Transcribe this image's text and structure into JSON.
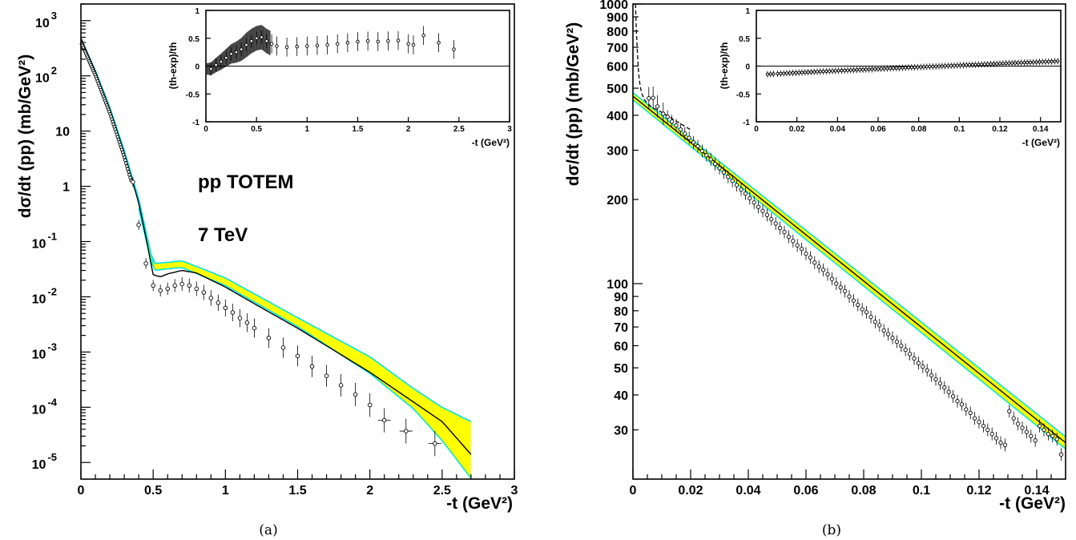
{
  "chart_data": [
    {
      "id": "a",
      "type": "scatter",
      "caption": "(a)",
      "annotations": [
        "pp  TOTEM",
        "7 TeV"
      ],
      "xlabel": "-t (GeV²)",
      "ylabel": "dσ/dt (pp) (mb/GeV²)",
      "xlim": [
        0,
        3
      ],
      "ylim": [
        5e-06,
        2000
      ],
      "yscale": "log",
      "xticks": [
        0,
        0.5,
        1,
        1.5,
        2,
        2.5,
        3
      ],
      "xtick_labels": [
        "0",
        "0.5",
        "1",
        "1.5",
        "2",
        "2.5",
        "3"
      ],
      "ytick_labels": [
        {
          "value": 1000,
          "label": "10 3"
        },
        {
          "value": 100,
          "label": "10 2"
        },
        {
          "value": 10,
          "label": "10"
        },
        {
          "value": 1,
          "label": "1"
        },
        {
          "value": 0.1,
          "label": "10 -1"
        },
        {
          "value": 0.01,
          "label": "10 -2"
        },
        {
          "value": 0.001,
          "label": "10 -3"
        },
        {
          "value": 0.0001,
          "label": "10 -4"
        },
        {
          "value": 1e-05,
          "label": "10 -5"
        }
      ],
      "band_color": "#ffff00",
      "band_edge_color": "#00e5e5",
      "model_curve": {
        "x": [
          0,
          0.1,
          0.2,
          0.3,
          0.4,
          0.45,
          0.5,
          0.55,
          0.6,
          0.7,
          0.8,
          1.0,
          1.2,
          1.5,
          2.0,
          2.5,
          2.7
        ],
        "y": [
          480,
          120,
          25,
          4,
          0.5,
          0.12,
          0.025,
          0.023,
          0.026,
          0.03,
          0.027,
          0.015,
          0.0075,
          0.0027,
          0.00043,
          5.5e-05,
          1.4e-05
        ]
      },
      "band_upper": {
        "x": [
          0.4,
          0.5,
          0.6,
          0.7,
          1.0,
          1.5,
          2.0,
          2.3,
          2.5,
          2.7
        ],
        "y": [
          0.6,
          0.04,
          0.042,
          0.045,
          0.022,
          0.0042,
          0.00082,
          0.00022,
          0.0001,
          5.5e-05
        ]
      },
      "band_lower": {
        "x": [
          0.4,
          0.5,
          0.6,
          0.7,
          1.0,
          1.5,
          2.0,
          2.3,
          2.5,
          2.7
        ],
        "y": [
          0.4,
          0.03,
          0.032,
          0.034,
          0.016,
          0.0029,
          0.00041,
          9.5e-05,
          2.5e-05,
          5.2e-06
        ]
      },
      "data_points": {
        "x": [
          0.36,
          0.4,
          0.45,
          0.5,
          0.55,
          0.6,
          0.65,
          0.7,
          0.75,
          0.8,
          0.85,
          0.9,
          0.95,
          1.0,
          1.05,
          1.1,
          1.15,
          1.2,
          1.3,
          1.4,
          1.5,
          1.6,
          1.7,
          1.8,
          1.9,
          2.0,
          2.1,
          2.25,
          2.45
        ],
        "y": [
          1.2,
          0.2,
          0.04,
          0.016,
          0.013,
          0.014,
          0.016,
          0.017,
          0.016,
          0.014,
          0.012,
          0.0095,
          0.0078,
          0.0063,
          0.0052,
          0.0041,
          0.0034,
          0.0027,
          0.0018,
          0.0012,
          0.00085,
          0.00055,
          0.00037,
          0.00025,
          0.00017,
          0.00011,
          5.8e-05,
          3.7e-05,
          2.2e-05
        ]
      },
      "inset": {
        "xlabel": "-t (GeV²)",
        "ylabel": "(th-exp)/th",
        "xlim": [
          0,
          3
        ],
        "ylim": [
          -1,
          1
        ],
        "xtick_labels": [
          "0",
          "0.5",
          "1",
          "1.5",
          "2",
          "2.5",
          "3"
        ],
        "ytick_labels": [
          "1",
          "0.5",
          "0",
          "-0.5",
          "-1"
        ],
        "residuals": {
          "x": [
            0.05,
            0.1,
            0.15,
            0.2,
            0.25,
            0.3,
            0.35,
            0.4,
            0.45,
            0.5,
            0.55,
            0.6,
            0.65,
            0.7,
            0.8,
            0.9,
            1.0,
            1.1,
            1.2,
            1.3,
            1.4,
            1.5,
            1.6,
            1.7,
            1.8,
            1.9,
            2.0,
            2.05,
            2.15,
            2.3,
            2.45
          ],
          "y": [
            -0.05,
            0.02,
            0.08,
            0.15,
            0.22,
            0.25,
            0.3,
            0.38,
            0.45,
            0.5,
            0.52,
            0.45,
            0.4,
            0.36,
            0.34,
            0.35,
            0.36,
            0.37,
            0.38,
            0.4,
            0.42,
            0.44,
            0.45,
            0.44,
            0.45,
            0.46,
            0.4,
            0.38,
            0.55,
            0.42,
            0.3
          ]
        }
      }
    },
    {
      "id": "b",
      "type": "scatter",
      "caption": "(b)",
      "xlabel": "-t (GeV²)",
      "ylabel": "dσ/dt (pp) (mb/GeV²)",
      "xlim": [
        0,
        0.15
      ],
      "ylim": [
        20,
        1000
      ],
      "yscale": "log",
      "xticks": [
        0,
        0.02,
        0.04,
        0.06,
        0.08,
        0.1,
        0.12,
        0.14
      ],
      "xtick_labels": [
        "0",
        "0.02",
        "0.04",
        "0.06",
        "0.08",
        "0.1",
        "0.12",
        "0.14"
      ],
      "ytick_labels": [
        {
          "value": 1000,
          "label": "1000"
        },
        {
          "value": 900,
          "label": "900"
        },
        {
          "value": 800,
          "label": "800"
        },
        {
          "value": 700,
          "label": "700"
        },
        {
          "value": 600,
          "label": "600"
        },
        {
          "value": 500,
          "label": "500"
        },
        {
          "value": 400,
          "label": "400"
        },
        {
          "value": 300,
          "label": "300"
        },
        {
          "value": 200,
          "label": "200"
        },
        {
          "value": 100,
          "label": "100"
        },
        {
          "value": 90,
          "label": "90"
        },
        {
          "value": 80,
          "label": "80"
        },
        {
          "value": 70,
          "label": "70"
        },
        {
          "value": 60,
          "label": "60"
        },
        {
          "value": 50,
          "label": "50"
        },
        {
          "value": 40,
          "label": "40"
        },
        {
          "value": 30,
          "label": "30"
        }
      ],
      "model_curve": {
        "x": [
          0,
          0.15
        ],
        "y": [
          468,
          27
        ]
      },
      "band_color": "#ffff00",
      "band_edge_color": "#00e5e5",
      "dashed_curve": {
        "x": [
          0.0009,
          0.0012,
          0.0016,
          0.002,
          0.0025,
          0.003,
          0.004,
          0.005,
          0.007,
          0.01,
          0.02
        ],
        "y": [
          1000,
          800,
          650,
          560,
          510,
          480,
          455,
          440,
          425,
          410,
          355
        ]
      },
      "data_points": {
        "x": [
          0.0055,
          0.007,
          0.0085,
          0.0105,
          0.012,
          0.0135,
          0.015,
          0.0165,
          0.018,
          0.0195,
          0.021,
          0.0225,
          0.024,
          0.0255,
          0.027,
          0.0285,
          0.03,
          0.0315,
          0.033,
          0.0345,
          0.036,
          0.0375,
          0.039,
          0.0405,
          0.042,
          0.0435,
          0.045,
          0.0465,
          0.048,
          0.0495,
          0.051,
          0.0525,
          0.054,
          0.0555,
          0.057,
          0.0585,
          0.06,
          0.0615,
          0.063,
          0.0645,
          0.066,
          0.0675,
          0.069,
          0.0705,
          0.072,
          0.0735,
          0.075,
          0.0765,
          0.078,
          0.0795,
          0.081,
          0.0825,
          0.084,
          0.0855,
          0.087,
          0.0885,
          0.09,
          0.0915,
          0.093,
          0.0945,
          0.096,
          0.0975,
          0.099,
          0.1005,
          0.102,
          0.1035,
          0.105,
          0.1065,
          0.108,
          0.1095,
          0.111,
          0.1125,
          0.114,
          0.1155,
          0.117,
          0.1185,
          0.12,
          0.1215,
          0.123,
          0.1245,
          0.126,
          0.1275,
          0.129,
          0.1305,
          0.132,
          0.1335,
          0.135,
          0.1365,
          0.138,
          0.1395,
          0.141,
          0.1425,
          0.144,
          0.1455,
          0.147,
          0.1485
        ],
        "y": [
          460,
          462,
          430,
          405,
          395,
          380,
          368,
          356,
          344,
          332,
          320,
          310,
          298,
          288,
          278,
          268,
          259,
          250,
          241,
          233,
          225,
          217,
          210,
          202,
          195,
          188,
          182,
          176,
          170,
          164,
          158,
          153,
          147,
          142,
          137,
          133,
          128,
          124,
          119,
          115,
          112,
          108,
          104,
          100,
          97,
          94,
          90,
          87,
          84,
          81,
          79,
          76,
          73,
          71,
          68,
          66,
          64,
          62,
          60,
          58,
          56,
          54,
          52,
          50.5,
          49,
          47,
          45.5,
          44,
          42.5,
          41,
          39.5,
          38,
          37,
          35.5,
          34.5,
          33,
          32,
          31,
          30,
          29,
          28,
          27,
          26.5,
          35,
          33,
          31.5,
          30.5,
          29.5,
          28.5,
          27.5,
          31,
          30,
          29,
          28.5,
          27.8,
          24.5
        ]
      },
      "inset": {
        "xlabel": "-t (GeV²)",
        "ylabel": "(th-exp)/th",
        "xlim": [
          0,
          0.15
        ],
        "ylim": [
          -1,
          1
        ],
        "xtick_labels": [
          "0",
          "0.02",
          "0.04",
          "0.06",
          "0.08",
          "0.1",
          "0.12",
          "0.14"
        ],
        "ytick_labels": [
          "1",
          "0.5",
          "0",
          "-0.5",
          "-1"
        ]
      }
    }
  ]
}
